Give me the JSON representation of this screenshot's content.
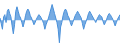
{
  "chart_data": {
    "type": "area",
    "x": [
      0,
      1,
      2,
      3,
      4,
      5,
      6,
      7,
      8,
      9,
      10,
      11,
      12,
      13,
      14,
      15,
      16,
      17,
      18,
      19,
      20,
      21,
      22,
      23,
      24,
      25,
      26,
      27,
      28,
      29,
      30,
      31,
      32,
      33,
      34,
      35,
      36,
      37,
      38,
      39,
      40,
      41,
      42,
      43,
      44,
      45,
      46,
      47,
      48,
      49,
      50,
      51,
      52,
      53,
      54,
      55,
      56,
      57,
      58,
      59,
      60,
      61,
      62,
      63,
      64,
      65,
      66,
      67,
      68,
      69,
      70,
      71,
      72,
      73,
      74,
      75,
      76,
      77,
      78,
      79,
      80,
      81,
      82,
      83,
      84,
      85,
      86,
      87,
      88,
      89,
      90,
      91,
      92,
      93,
      94,
      95,
      96,
      97,
      98,
      99
    ],
    "values": [
      2,
      -3,
      -8,
      3,
      5,
      -2,
      8,
      10,
      6,
      3,
      -5,
      -12,
      -4,
      8,
      12,
      8,
      4,
      2,
      -2,
      -6,
      -2,
      4,
      8,
      10,
      8,
      4,
      2,
      -1,
      -4,
      -2,
      1,
      3,
      5,
      4,
      2,
      0,
      -3,
      -8,
      -4,
      -1,
      2,
      6,
      10,
      14,
      10,
      6,
      2,
      -2,
      -8,
      -20,
      -6,
      -2,
      4,
      8,
      10,
      8,
      4,
      2,
      -2,
      -5,
      -2,
      1,
      4,
      6,
      8,
      6,
      4,
      2,
      -3,
      -8,
      -4,
      -1,
      2,
      6,
      8,
      6,
      4,
      2,
      0,
      -2,
      1,
      3,
      5,
      4,
      3,
      -1,
      -4,
      -2,
      1,
      4,
      6,
      5,
      3,
      1,
      -2,
      -5,
      -2,
      1,
      3,
      5
    ],
    "color": "#4a90d9",
    "xlim": [
      0,
      99
    ],
    "ylim": [
      -22,
      18
    ],
    "grid": false,
    "tick_labels": false
  }
}
